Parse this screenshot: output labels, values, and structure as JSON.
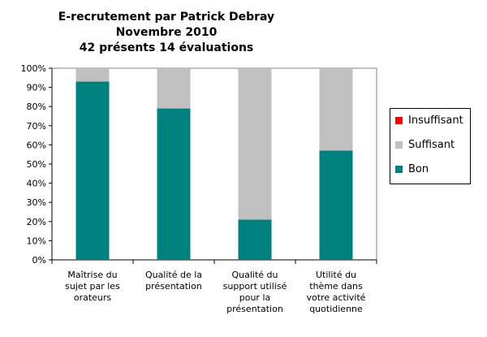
{
  "title_lines": [
    "E-recrutement par Patrick Debray",
    "Novembre 2010",
    "42 présents 14 évaluations"
  ],
  "chart_data": {
    "type": "bar",
    "stacked": true,
    "title": "E-recrutement par Patrick Debray / Novembre 2010 / 42 présents 14 évaluations",
    "categories": [
      "Maîtrise du sujet par les orateurs",
      "Qualité de la présentation",
      "Qualité du support utilisé pour la présentation",
      "Utilité du thème dans votre activité quotidienne"
    ],
    "series": [
      {
        "name": "Bon",
        "values": [
          0.93,
          0.79,
          0.21,
          0.57
        ],
        "color": "#00807f"
      },
      {
        "name": "Suffisant",
        "values": [
          0.07,
          0.21,
          0.79,
          0.43
        ],
        "color": "#c0c0c0"
      },
      {
        "name": "Insuffisant",
        "values": [
          0,
          0,
          0,
          0
        ],
        "color": "#ff0000"
      }
    ],
    "yticks": [
      "0%",
      "10%",
      "20%",
      "30%",
      "40%",
      "50%",
      "60%",
      "70%",
      "80%",
      "90%",
      "100%"
    ],
    "ylim": [
      0,
      1
    ],
    "grid": false,
    "legend": "right",
    "legend_order": [
      "Insuffisant",
      "Suffisant",
      "Bon"
    ]
  }
}
